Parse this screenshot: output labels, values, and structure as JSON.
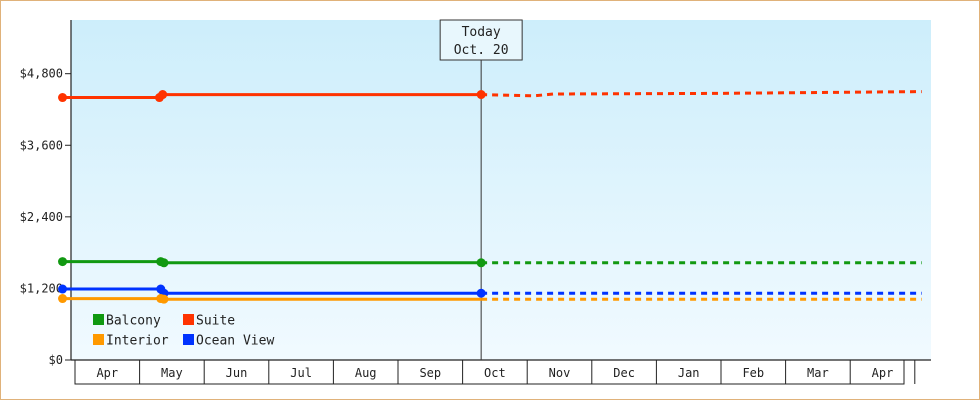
{
  "chart_data": {
    "type": "line",
    "y_ticks": [
      {
        "value": 0,
        "label": "$0"
      },
      {
        "value": 1200,
        "label": "$1,200"
      },
      {
        "value": 2400,
        "label": "$2,400"
      },
      {
        "value": 3600,
        "label": "$3,600"
      },
      {
        "value": 4800,
        "label": "$4,800"
      }
    ],
    "ylim": [
      0,
      5700
    ],
    "months": [
      "Apr",
      "May",
      "Jun",
      "Jul",
      "Aug",
      "Sep",
      "Oct",
      "Nov",
      "Dec",
      "Jan",
      "Feb",
      "Mar",
      "Apr"
    ],
    "today": {
      "line1": "Today",
      "line2": "Oct. 20",
      "x": 6.38
    },
    "x_range": [
      -0.1,
      13.2
    ],
    "series": [
      {
        "name": "Suite",
        "color": "#ff3300",
        "actual": [
          {
            "x": -0.1,
            "y": 4400
          },
          {
            "x": 1.4,
            "y": 4400
          },
          {
            "x": 1.45,
            "y": 4450
          },
          {
            "x": 6.38,
            "y": 4450
          }
        ],
        "forecast": [
          {
            "x": 6.38,
            "y": 4450
          },
          {
            "x": 7.2,
            "y": 4430
          },
          {
            "x": 7.5,
            "y": 4460
          },
          {
            "x": 10.0,
            "y": 4470
          },
          {
            "x": 13.2,
            "y": 4500
          }
        ],
        "markers": [
          {
            "x": -0.1,
            "y": 4400
          },
          {
            "x": 1.4,
            "y": 4400
          },
          {
            "x": 1.45,
            "y": 4450
          },
          {
            "x": 6.38,
            "y": 4450
          }
        ]
      },
      {
        "name": "Balcony",
        "color": "#119911",
        "actual": [
          {
            "x": -0.1,
            "y": 1650
          },
          {
            "x": 1.42,
            "y": 1650
          },
          {
            "x": 1.47,
            "y": 1630
          },
          {
            "x": 6.38,
            "y": 1630
          }
        ],
        "forecast": [
          {
            "x": 6.38,
            "y": 1630
          },
          {
            "x": 13.2,
            "y": 1630
          }
        ],
        "markers": [
          {
            "x": -0.1,
            "y": 1650
          },
          {
            "x": 1.42,
            "y": 1650
          },
          {
            "x": 1.47,
            "y": 1630
          },
          {
            "x": 6.38,
            "y": 1630
          }
        ]
      },
      {
        "name": "Ocean View",
        "color": "#0033ff",
        "actual": [
          {
            "x": -0.1,
            "y": 1190
          },
          {
            "x": 1.42,
            "y": 1190
          },
          {
            "x": 1.47,
            "y": 1120
          },
          {
            "x": 6.38,
            "y": 1120
          }
        ],
        "forecast": [
          {
            "x": 6.38,
            "y": 1120
          },
          {
            "x": 13.2,
            "y": 1120
          }
        ],
        "markers": [
          {
            "x": -0.1,
            "y": 1190
          },
          {
            "x": 1.42,
            "y": 1190
          },
          {
            "x": 1.47,
            "y": 1120
          },
          {
            "x": 6.38,
            "y": 1120
          }
        ]
      },
      {
        "name": "Interior",
        "color": "#ff9900",
        "actual": [
          {
            "x": -0.1,
            "y": 1030
          },
          {
            "x": 1.42,
            "y": 1030
          },
          {
            "x": 1.47,
            "y": 1020
          },
          {
            "x": 6.38,
            "y": 1020
          }
        ],
        "forecast": [
          {
            "x": 6.38,
            "y": 1020
          },
          {
            "x": 13.2,
            "y": 1020
          }
        ],
        "markers": [
          {
            "x": -0.1,
            "y": 1030
          },
          {
            "x": 1.42,
            "y": 1030
          },
          {
            "x": 1.47,
            "y": 1020
          }
        ]
      }
    ],
    "legend": {
      "placement": "bottom-left",
      "items": [
        {
          "name": "Balcony",
          "color": "#119911"
        },
        {
          "name": "Suite",
          "color": "#ff3300"
        },
        {
          "name": "Interior",
          "color": "#ff9900"
        },
        {
          "name": "Ocean View",
          "color": "#0033ff"
        }
      ]
    },
    "colors": {
      "plot_bg_top": "#cdeefb",
      "plot_bg_bottom": "#f1faff",
      "frame_border": "#e0b27a",
      "axis": "#222222"
    }
  }
}
